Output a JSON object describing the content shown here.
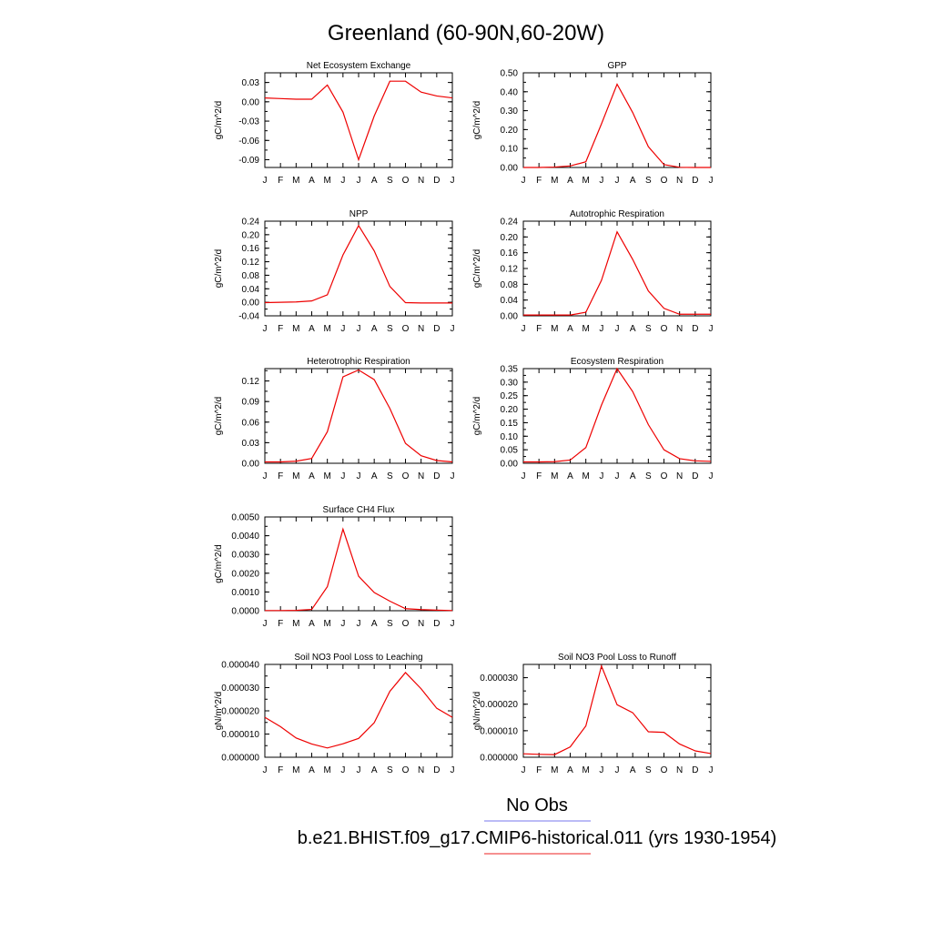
{
  "title": "Greenland (60-90N,60-20W)",
  "legend": {
    "entries": [
      {
        "label": "No Obs",
        "color": "#7777ee"
      },
      {
        "label": "b.e21.BHIST.f09_g17.CMIP6-historical.011 (yrs 1930-1954)",
        "color": "#ee2222"
      }
    ]
  },
  "chart_data": [
    {
      "type": "line",
      "title": "Net Ecosystem Exchange",
      "ylabel": "gC/m^2/d",
      "categories": [
        "J",
        "F",
        "M",
        "A",
        "M",
        "J",
        "J",
        "A",
        "S",
        "O",
        "N",
        "D",
        "J"
      ],
      "ylim": [
        -0.102,
        0.045
      ],
      "yticks": [
        "0.03",
        "0.00",
        "-0.03",
        "-0.06",
        "-0.09"
      ],
      "ytick_values": [
        0.03,
        0.0,
        -0.03,
        -0.06,
        -0.09
      ],
      "series": [
        {
          "color": "#ee0000",
          "values": [
            0.006,
            0.005,
            0.004,
            0.004,
            0.026,
            -0.016,
            -0.09,
            -0.022,
            0.032,
            0.032,
            0.015,
            0.009,
            0.006
          ]
        }
      ]
    },
    {
      "type": "line",
      "title": "GPP",
      "ylabel": "gC/m^2/d",
      "categories": [
        "J",
        "F",
        "M",
        "A",
        "M",
        "J",
        "J",
        "A",
        "S",
        "O",
        "N",
        "D",
        "J"
      ],
      "ylim": [
        0.0,
        0.5
      ],
      "yticks": [
        "0.50",
        "0.40",
        "0.30",
        "0.20",
        "0.10",
        "0.00"
      ],
      "ytick_values": [
        0.5,
        0.4,
        0.3,
        0.2,
        0.1,
        0.0
      ],
      "series": [
        {
          "color": "#ee0000",
          "values": [
            0.0,
            0.0,
            0.002,
            0.008,
            0.03,
            0.23,
            0.44,
            0.29,
            0.11,
            0.015,
            0.001,
            0.0,
            0.0
          ]
        }
      ]
    },
    {
      "type": "line",
      "title": "NPP",
      "ylabel": "gC/m^2/d",
      "categories": [
        "J",
        "F",
        "M",
        "A",
        "M",
        "J",
        "J",
        "A",
        "S",
        "O",
        "N",
        "D",
        "J"
      ],
      "ylim": [
        -0.04,
        0.24
      ],
      "yticks": [
        "0.24",
        "0.20",
        "0.16",
        "0.12",
        "0.08",
        "0.04",
        "0.00",
        "-0.04"
      ],
      "ytick_values": [
        0.24,
        0.2,
        0.16,
        0.12,
        0.08,
        0.04,
        0.0,
        -0.04
      ],
      "series": [
        {
          "color": "#ee0000",
          "values": [
            -0.001,
            0.0,
            0.001,
            0.004,
            0.022,
            0.14,
            0.227,
            0.152,
            0.047,
            -0.001,
            -0.002,
            -0.002,
            -0.002
          ]
        }
      ]
    },
    {
      "type": "line",
      "title": "Autotrophic Respiration",
      "ylabel": "gC/m^2/d",
      "categories": [
        "J",
        "F",
        "M",
        "A",
        "M",
        "J",
        "J",
        "A",
        "S",
        "O",
        "N",
        "D",
        "J"
      ],
      "ylim": [
        0.0,
        0.24
      ],
      "yticks": [
        "0.24",
        "0.20",
        "0.16",
        "0.12",
        "0.08",
        "0.04",
        "0.00"
      ],
      "ytick_values": [
        0.24,
        0.2,
        0.16,
        0.12,
        0.08,
        0.04,
        0.0
      ],
      "series": [
        {
          "color": "#ee0000",
          "values": [
            0.002,
            0.002,
            0.002,
            0.002,
            0.009,
            0.09,
            0.213,
            0.143,
            0.063,
            0.019,
            0.004,
            0.004,
            0.004
          ]
        }
      ]
    },
    {
      "type": "line",
      "title": "Heterotrophic Respiration",
      "ylabel": "gC/m^2/d",
      "categories": [
        "J",
        "F",
        "M",
        "A",
        "M",
        "J",
        "J",
        "A",
        "S",
        "O",
        "N",
        "D",
        "J"
      ],
      "ylim": [
        0.0,
        0.138
      ],
      "yticks": [
        "0.12",
        "0.09",
        "0.06",
        "0.03",
        "0.00"
      ],
      "ytick_values": [
        0.12,
        0.09,
        0.06,
        0.03,
        0.0
      ],
      "series": [
        {
          "color": "#ee0000",
          "values": [
            0.002,
            0.002,
            0.003,
            0.007,
            0.046,
            0.126,
            0.136,
            0.122,
            0.08,
            0.029,
            0.011,
            0.004,
            0.002
          ]
        }
      ]
    },
    {
      "type": "line",
      "title": "Ecosystem Respiration",
      "ylabel": "gC/m^2/d",
      "categories": [
        "J",
        "F",
        "M",
        "A",
        "M",
        "J",
        "J",
        "A",
        "S",
        "O",
        "N",
        "D",
        "J"
      ],
      "ylim": [
        0.0,
        0.35
      ],
      "yticks": [
        "0.35",
        "0.30",
        "0.25",
        "0.20",
        "0.15",
        "0.10",
        "0.05",
        "0.00"
      ],
      "ytick_values": [
        0.35,
        0.3,
        0.25,
        0.2,
        0.15,
        0.1,
        0.05,
        0.0
      ],
      "series": [
        {
          "color": "#ee0000",
          "values": [
            0.005,
            0.005,
            0.006,
            0.012,
            0.058,
            0.215,
            0.35,
            0.265,
            0.143,
            0.05,
            0.017,
            0.009,
            0.007
          ]
        }
      ]
    },
    {
      "type": "line",
      "title": "Surface CH4 Flux",
      "ylabel": "gC/m^2/d",
      "categories": [
        "J",
        "F",
        "M",
        "A",
        "M",
        "J",
        "J",
        "A",
        "S",
        "O",
        "N",
        "D",
        "J"
      ],
      "ylim": [
        0.0,
        0.005
      ],
      "yticks": [
        "0.0050",
        "0.0040",
        "0.0030",
        "0.0020",
        "0.0010",
        "0.0000"
      ],
      "ytick_values": [
        0.005,
        0.004,
        0.003,
        0.002,
        0.001,
        0.0
      ],
      "series": [
        {
          "color": "#ee0000",
          "values": [
            1e-05,
            1e-05,
            2e-05,
            7e-05,
            0.00128,
            0.00435,
            0.00184,
            0.00097,
            0.00051,
            0.00011,
            6e-05,
            3e-05,
            1e-05
          ]
        }
      ]
    },
    {
      "type": "line",
      "title": "Soil NO3 Pool Loss to Leaching",
      "ylabel": "gN/m^2/d",
      "categories": [
        "J",
        "F",
        "M",
        "A",
        "M",
        "J",
        "J",
        "A",
        "S",
        "O",
        "N",
        "D",
        "J"
      ],
      "ylim": [
        0.0,
        4e-05
      ],
      "yticks": [
        "0.000040",
        "0.000030",
        "0.000020",
        "0.000010",
        "0.000000"
      ],
      "ytick_values": [
        4e-05,
        3e-05,
        2e-05,
        1e-05,
        0.0
      ],
      "series": [
        {
          "color": "#ee0000",
          "values": [
            1.72e-05,
            1.32e-05,
            8.3e-06,
            5.7e-06,
            4e-06,
            5.8e-06,
            8.1e-06,
            1.49e-05,
            2.84e-05,
            3.65e-05,
            2.95e-05,
            2.11e-05,
            1.72e-05
          ]
        }
      ]
    },
    {
      "type": "line",
      "title": "Soil NO3 Pool Loss to Runoff",
      "ylabel": "gN/m^2/d",
      "categories": [
        "J",
        "F",
        "M",
        "A",
        "M",
        "J",
        "J",
        "A",
        "S",
        "O",
        "N",
        "D",
        "J"
      ],
      "ylim": [
        0.0,
        3.5e-05
      ],
      "yticks": [
        "0.000030",
        "0.000020",
        "0.000010",
        "0.000000"
      ],
      "ytick_values": [
        3e-05,
        2e-05,
        1e-05,
        0.0
      ],
      "series": [
        {
          "color": "#ee0000",
          "values": [
            1.3e-06,
            1.1e-06,
            1e-06,
            3.9e-06,
            1.18e-05,
            3.44e-05,
            1.98e-05,
            1.68e-05,
            9.6e-06,
            9.4e-06,
            5e-06,
            2.4e-06,
            1.4e-06
          ]
        }
      ]
    }
  ]
}
